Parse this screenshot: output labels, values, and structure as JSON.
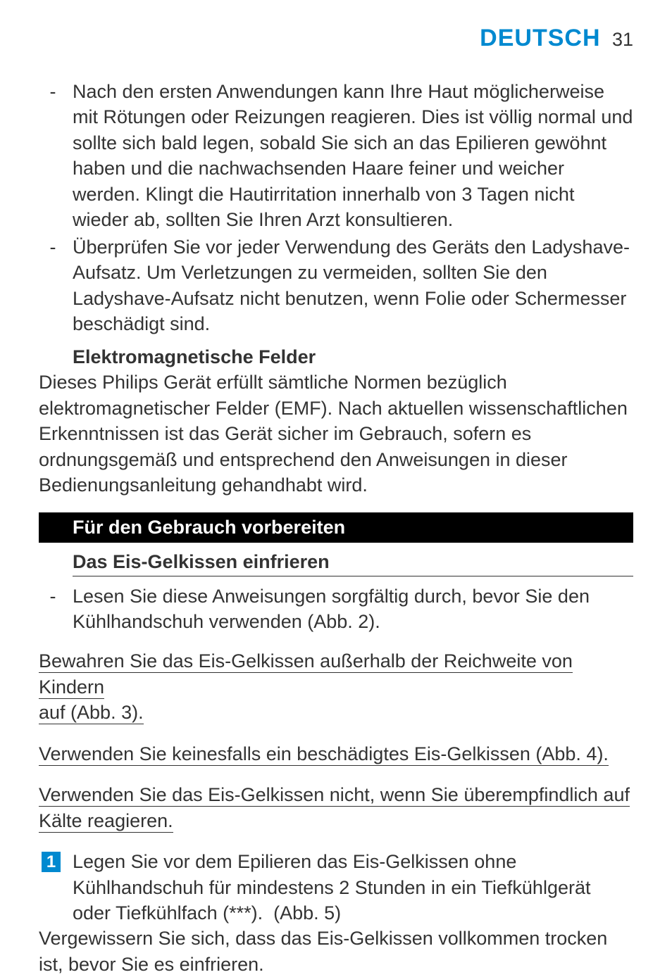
{
  "header": {
    "lang": "DEUTSCH",
    "page": "31"
  },
  "bullets_top": [
    "Nach den ersten Anwendungen kann Ihre Haut möglicherweise mit Rötungen oder Reizungen reagieren. Dies ist völlig normal und sollte sich bald legen, sobald Sie sich an das Epilieren gewöhnt haben und die nachwachsenden Haare feiner und weicher werden. Klingt die Hautirritation innerhalb von 3 Tagen nicht wieder ab, sollten Sie Ihren Arzt konsultieren.",
    "Überprüfen Sie vor jeder Verwendung des Geräts den Ladyshave-Aufsatz. Um Verletzungen zu vermeiden, sollten Sie den Ladyshave-Aufsatz nicht benutzen, wenn Folie oder Schermesser beschädigt sind."
  ],
  "emf": {
    "heading": "Elektromagnetische Felder",
    "body": "Dieses Philips Gerät erfüllt sämtliche Normen bezüglich elektromagnetischer Felder (EMF). Nach aktuellen wissenschaftlichen Erkenntnissen ist das Gerät sicher im Gebrauch, sofern es ordnungsgemäß und entsprechend den Anweisungen in dieser Bedienungsanleitung gehandhabt wird."
  },
  "section_bar": "Für den Gebrauch vorbereiten",
  "sub_underline": "Das Eis-Gelkissen einfrieren",
  "bullets_mid": [
    "Lesen Sie diese Anweisungen sorgfältig durch, bevor Sie den Kühlhandschuh verwenden (Abb. 2)."
  ],
  "warnings": [
    [
      "Bewahren Sie das Eis-Gelkissen außerhalb der Reichweite von Kindern ",
      "auf (Abb. 3)."
    ],
    [
      "Verwenden Sie keinesfalls ein beschädigtes Eis-Gelkissen (Abb. 4)."
    ],
    [
      "Verwenden Sie das Eis-Gelkissen nicht, wenn Sie überempfindlich auf ",
      "Kälte reagieren."
    ]
  ],
  "step": {
    "num": "1",
    "text": "Legen Sie vor dem Epilieren das Eis-Gelkissen ohne Kühlhandschuh für mindestens 2 Stunden in ein Tiefkühlgerät oder Tiefkühlfach (***).  (Abb. 5)"
  },
  "followup": "Vergewissern Sie sich, dass das Eis-Gelkissen vollkommen trocken ist, bevor Sie es einfrieren.",
  "colors": {
    "accent": "#0089d0",
    "text": "#333333",
    "bg": "#ffffff",
    "bar_bg": "#000000",
    "bar_fg": "#ffffff"
  }
}
